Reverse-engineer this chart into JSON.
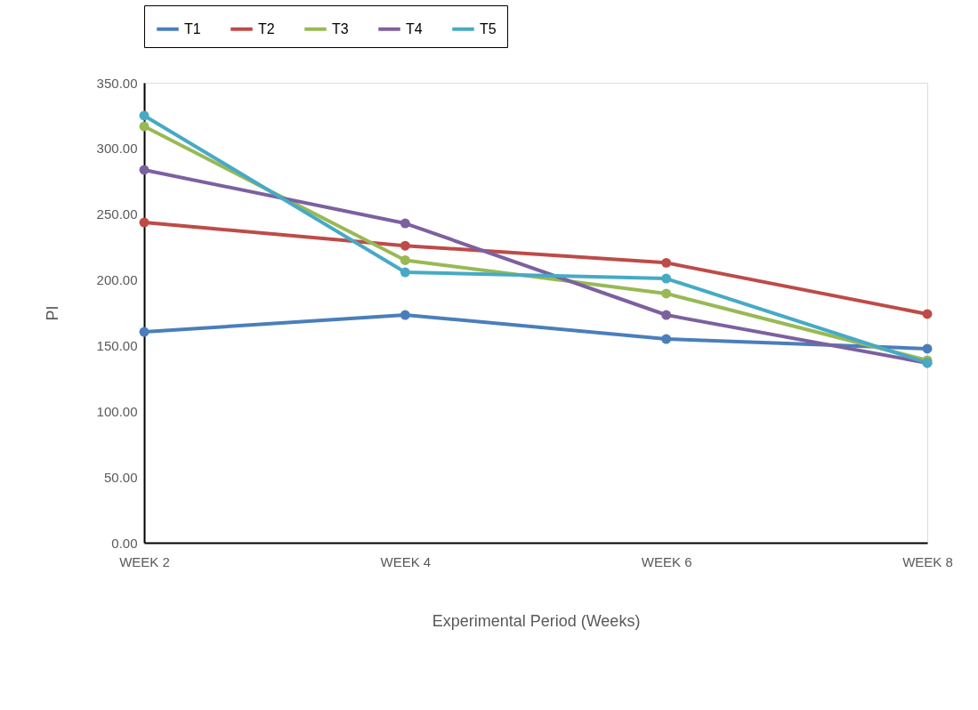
{
  "chart_data": {
    "type": "line",
    "xlabel": "Experimental Period (Weeks)",
    "ylabel": "PI",
    "categories": [
      "WEEK 2",
      "WEEK 4",
      "WEEK 6",
      "WEEK 8"
    ],
    "series": [
      {
        "name": "T1",
        "color": "#4a7ebb",
        "values": [
          160.4,
          173.3,
          155.0,
          147.6
        ]
      },
      {
        "name": "T2",
        "color": "#be4b48",
        "values": [
          243.7,
          226.0,
          213.0,
          174.0
        ]
      },
      {
        "name": "T3",
        "color": "#98b954",
        "values": [
          316.8,
          215.0,
          189.6,
          138.8
        ]
      },
      {
        "name": "T4",
        "color": "#7d60a0",
        "values": [
          283.7,
          243.0,
          173.3,
          136.8
        ]
      },
      {
        "name": "T5",
        "color": "#46aac5",
        "values": [
          325.0,
          205.8,
          201.0,
          136.8
        ]
      }
    ],
    "ylim": [
      0,
      350
    ],
    "yticks": [
      {
        "value": 0,
        "label": "0.00"
      },
      {
        "value": 50,
        "label": "50.00"
      },
      {
        "value": 100,
        "label": "100.00"
      },
      {
        "value": 150,
        "label": "150.00"
      },
      {
        "value": 200,
        "label": "200.00"
      },
      {
        "value": 250,
        "label": "250.00"
      },
      {
        "value": 300,
        "label": "300.00"
      },
      {
        "value": 350,
        "label": "350.00"
      }
    ],
    "legend": "top",
    "marker": "circle",
    "line_style": "solid",
    "grid": false
  }
}
